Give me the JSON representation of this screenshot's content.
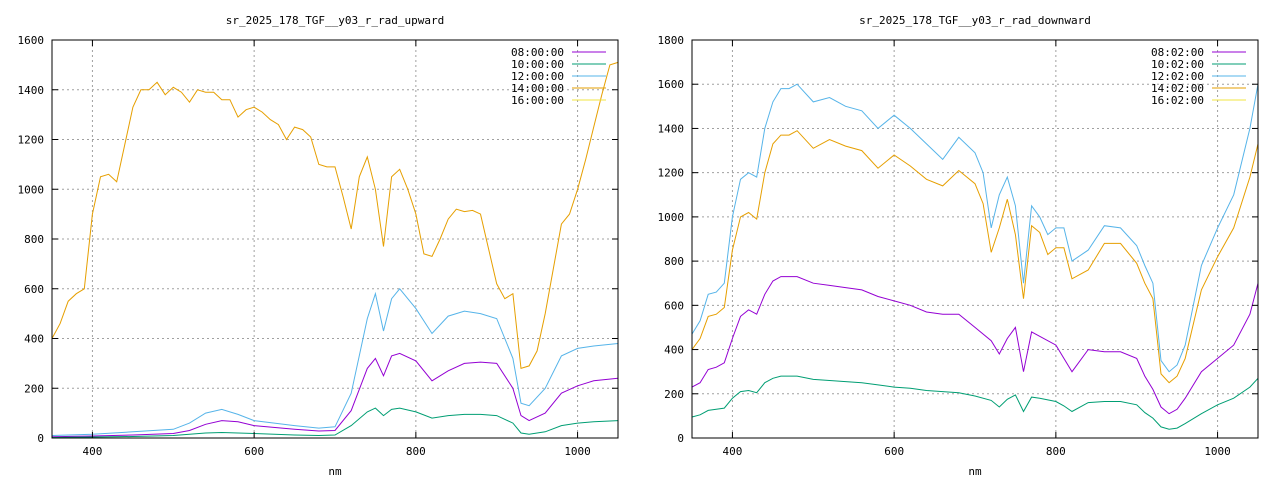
{
  "chart_data": [
    {
      "type": "line",
      "title": "sr_2025_178_TGF__y03_r_rad_upward",
      "xlabel": "nm",
      "ylabel": "",
      "xlim": [
        350,
        1050
      ],
      "ylim": [
        0,
        1600
      ],
      "xticks": [
        400,
        600,
        800,
        1000
      ],
      "yticks": [
        0,
        200,
        400,
        600,
        800,
        1000,
        1200,
        1400,
        1600
      ],
      "grid": true,
      "legend_position": "top-right",
      "series": [
        {
          "name": "08:00:00",
          "color": "#9400d3",
          "x": [
            350,
            400,
            450,
            500,
            520,
            540,
            560,
            580,
            600,
            650,
            680,
            700,
            720,
            740,
            750,
            760,
            770,
            780,
            800,
            820,
            840,
            860,
            880,
            900,
            920,
            930,
            940,
            960,
            980,
            1000,
            1020,
            1050
          ],
          "y": [
            5,
            8,
            12,
            18,
            30,
            55,
            70,
            65,
            50,
            35,
            28,
            30,
            110,
            280,
            320,
            250,
            330,
            340,
            310,
            230,
            270,
            300,
            305,
            300,
            200,
            90,
            70,
            100,
            180,
            210,
            230,
            240
          ]
        },
        {
          "name": "10:00:00",
          "color": "#009e73",
          "x": [
            350,
            400,
            450,
            500,
            520,
            540,
            560,
            580,
            600,
            650,
            680,
            700,
            720,
            740,
            750,
            760,
            770,
            780,
            800,
            820,
            840,
            860,
            880,
            900,
            920,
            930,
            940,
            960,
            980,
            1000,
            1020,
            1050
          ],
          "y": [
            2,
            4,
            6,
            10,
            15,
            20,
            22,
            20,
            18,
            12,
            10,
            12,
            50,
            105,
            120,
            90,
            115,
            120,
            105,
            80,
            90,
            95,
            95,
            90,
            60,
            20,
            15,
            25,
            50,
            60,
            65,
            70
          ]
        },
        {
          "name": "12:00:00",
          "color": "#56b4e9",
          "x": [
            350,
            400,
            450,
            500,
            520,
            540,
            560,
            580,
            600,
            650,
            680,
            700,
            720,
            740,
            750,
            760,
            770,
            780,
            800,
            820,
            840,
            860,
            880,
            900,
            920,
            930,
            940,
            960,
            980,
            1000,
            1020,
            1050
          ],
          "y": [
            10,
            15,
            25,
            35,
            60,
            100,
            115,
            95,
            70,
            50,
            40,
            45,
            180,
            480,
            580,
            430,
            560,
            600,
            520,
            420,
            490,
            510,
            500,
            480,
            320,
            140,
            130,
            200,
            330,
            360,
            370,
            380
          ]
        },
        {
          "name": "14:00:00",
          "color": "#e69f00",
          "x": [
            350,
            360,
            370,
            380,
            390,
            400,
            410,
            420,
            430,
            440,
            450,
            460,
            470,
            480,
            490,
            500,
            510,
            520,
            530,
            540,
            550,
            560,
            570,
            580,
            590,
            600,
            610,
            620,
            630,
            640,
            650,
            660,
            670,
            680,
            690,
            700,
            710,
            720,
            730,
            740,
            750,
            760,
            770,
            780,
            790,
            800,
            810,
            820,
            830,
            840,
            850,
            860,
            870,
            880,
            890,
            900,
            910,
            920,
            930,
            940,
            950,
            960,
            970,
            980,
            990,
            1000,
            1010,
            1020,
            1030,
            1040,
            1050
          ],
          "y": [
            400,
            460,
            550,
            580,
            600,
            900,
            1050,
            1060,
            1030,
            1180,
            1330,
            1400,
            1400,
            1430,
            1380,
            1410,
            1390,
            1350,
            1400,
            1390,
            1390,
            1360,
            1360,
            1290,
            1320,
            1330,
            1310,
            1280,
            1260,
            1200,
            1250,
            1240,
            1210,
            1100,
            1090,
            1090,
            970,
            840,
            1050,
            1130,
            1000,
            770,
            1050,
            1080,
            1000,
            900,
            740,
            730,
            800,
            880,
            920,
            910,
            915,
            900,
            760,
            620,
            560,
            580,
            280,
            290,
            350,
            500,
            680,
            860,
            900,
            1000,
            1120,
            1250,
            1380,
            1500,
            1510
          ]
        },
        {
          "name": "16:00:00",
          "color": "#f0e442",
          "x": [
            350,
            400,
            500,
            600,
            700,
            800,
            900,
            1000,
            1050
          ],
          "y": [
            0,
            0,
            0,
            0,
            0,
            0,
            0,
            0,
            0
          ]
        }
      ]
    },
    {
      "type": "line",
      "title": "sr_2025_178_TGF__y03_r_rad_downward",
      "xlabel": "nm",
      "ylabel": "",
      "xlim": [
        350,
        1050
      ],
      "ylim": [
        0,
        1800
      ],
      "xticks": [
        400,
        600,
        800,
        1000
      ],
      "yticks": [
        0,
        200,
        400,
        600,
        800,
        1000,
        1200,
        1400,
        1600,
        1800
      ],
      "grid": true,
      "legend_position": "top-right",
      "series": [
        {
          "name": "08:02:00",
          "color": "#9400d3",
          "x": [
            350,
            360,
            370,
            380,
            390,
            400,
            410,
            420,
            430,
            440,
            450,
            460,
            480,
            500,
            520,
            540,
            560,
            580,
            600,
            620,
            640,
            660,
            680,
            700,
            720,
            730,
            740,
            750,
            760,
            770,
            780,
            800,
            810,
            820,
            840,
            860,
            880,
            900,
            910,
            920,
            930,
            940,
            950,
            960,
            980,
            1000,
            1020,
            1040,
            1050
          ],
          "y": [
            230,
            250,
            310,
            320,
            340,
            450,
            550,
            580,
            560,
            650,
            710,
            730,
            730,
            700,
            690,
            680,
            670,
            640,
            620,
            600,
            570,
            560,
            560,
            500,
            440,
            380,
            450,
            500,
            300,
            480,
            460,
            420,
            360,
            300,
            400,
            390,
            390,
            360,
            280,
            220,
            140,
            110,
            130,
            180,
            300,
            360,
            420,
            560,
            700
          ]
        },
        {
          "name": "10:02:00",
          "color": "#009e73",
          "x": [
            350,
            360,
            370,
            380,
            390,
            400,
            410,
            420,
            430,
            440,
            450,
            460,
            480,
            500,
            520,
            540,
            560,
            580,
            600,
            620,
            640,
            660,
            680,
            700,
            720,
            730,
            740,
            750,
            760,
            770,
            780,
            800,
            810,
            820,
            840,
            860,
            880,
            900,
            910,
            920,
            930,
            940,
            950,
            960,
            980,
            1000,
            1020,
            1040,
            1050
          ],
          "y": [
            95,
            105,
            125,
            130,
            135,
            180,
            210,
            215,
            205,
            250,
            270,
            280,
            280,
            265,
            260,
            255,
            250,
            240,
            230,
            225,
            215,
            210,
            205,
            190,
            170,
            140,
            175,
            195,
            120,
            185,
            180,
            165,
            145,
            120,
            160,
            165,
            165,
            150,
            115,
            90,
            50,
            40,
            45,
            65,
            110,
            150,
            180,
            230,
            270
          ]
        },
        {
          "name": "12:02:00",
          "color": "#56b4e9",
          "x": [
            350,
            360,
            370,
            380,
            390,
            400,
            410,
            420,
            430,
            440,
            450,
            460,
            470,
            480,
            500,
            520,
            540,
            560,
            580,
            600,
            620,
            640,
            660,
            680,
            700,
            710,
            720,
            730,
            740,
            750,
            760,
            770,
            780,
            790,
            800,
            810,
            820,
            840,
            860,
            880,
            900,
            910,
            920,
            930,
            940,
            950,
            960,
            980,
            1000,
            1020,
            1040,
            1050
          ],
          "y": [
            470,
            530,
            650,
            660,
            700,
            1000,
            1170,
            1200,
            1180,
            1400,
            1520,
            1580,
            1580,
            1600,
            1520,
            1540,
            1500,
            1480,
            1400,
            1460,
            1400,
            1330,
            1260,
            1360,
            1290,
            1200,
            950,
            1100,
            1180,
            1050,
            700,
            1050,
            1000,
            920,
            950,
            950,
            800,
            850,
            960,
            950,
            870,
            780,
            700,
            350,
            300,
            330,
            420,
            780,
            950,
            1100,
            1400,
            1600
          ]
        },
        {
          "name": "14:02:00",
          "color": "#e69f00",
          "x": [
            350,
            360,
            370,
            380,
            390,
            400,
            410,
            420,
            430,
            440,
            450,
            460,
            470,
            480,
            500,
            520,
            540,
            560,
            580,
            600,
            620,
            640,
            660,
            680,
            700,
            710,
            720,
            730,
            740,
            750,
            760,
            770,
            780,
            790,
            800,
            810,
            820,
            840,
            860,
            880,
            900,
            910,
            920,
            930,
            940,
            950,
            960,
            980,
            1000,
            1020,
            1040,
            1050
          ],
          "y": [
            400,
            450,
            550,
            560,
            590,
            850,
            1000,
            1020,
            990,
            1200,
            1330,
            1370,
            1370,
            1390,
            1310,
            1350,
            1320,
            1300,
            1220,
            1280,
            1230,
            1170,
            1140,
            1210,
            1150,
            1060,
            840,
            950,
            1080,
            920,
            630,
            960,
            930,
            830,
            860,
            860,
            720,
            760,
            880,
            880,
            790,
            700,
            630,
            290,
            250,
            280,
            360,
            670,
            820,
            950,
            1180,
            1330
          ]
        },
        {
          "name": "16:02:00",
          "color": "#f0e442",
          "x": [
            350,
            400,
            500,
            600,
            700,
            800,
            900,
            1000,
            1050
          ],
          "y": [
            0,
            0,
            0,
            0,
            0,
            0,
            0,
            0,
            0
          ]
        }
      ]
    }
  ]
}
